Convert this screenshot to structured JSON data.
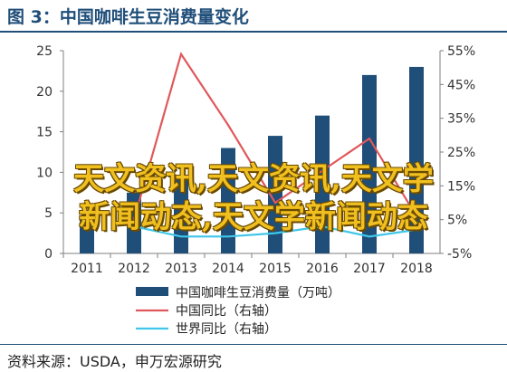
{
  "title": "图 3：中国咖啡生豆消费量变化",
  "source": "资料来源：USDA，申万宏源研究",
  "watermark": {
    "line1": "天文资讯,天文资讯,天文学",
    "line2": "新闻动态,天文学新闻动态"
  },
  "colors": {
    "title": "#1f4e79",
    "bar": "#1f4e79",
    "china_yoy": "#e0585b",
    "world_yoy": "#3fc6e8"
  },
  "chart_data": {
    "type": "bar",
    "categories": [
      "2011",
      "2012",
      "2013",
      "2014",
      "2015",
      "2016",
      "2017",
      "2018"
    ],
    "series": [
      {
        "name": "中国咖啡生豆消费量（万吨）",
        "type": "bar",
        "axis": "left",
        "values": [
          4.5,
          7.5,
          9.5,
          13.0,
          14.5,
          17.0,
          22.0,
          23.0
        ]
      },
      {
        "name": "中国同比（右轴）",
        "type": "line",
        "axis": "right",
        "values": [
          null,
          5,
          54,
          33,
          10,
          null,
          29,
          6
        ]
      },
      {
        "name": "世界同比（右轴）",
        "type": "line",
        "axis": "right",
        "values": [
          null,
          3,
          0,
          0,
          1,
          3,
          0,
          2
        ]
      }
    ],
    "y_left": {
      "ylim": [
        0,
        25
      ],
      "ticks": [
        "0",
        "5",
        "10",
        "15",
        "20",
        "25"
      ]
    },
    "y_right": {
      "ylim": [
        -5,
        55
      ],
      "ticks": [
        "-5%",
        "5%",
        "15%",
        "25%",
        "35%",
        "45%",
        "55%"
      ]
    },
    "legend_position": "bottom",
    "grid": false
  }
}
